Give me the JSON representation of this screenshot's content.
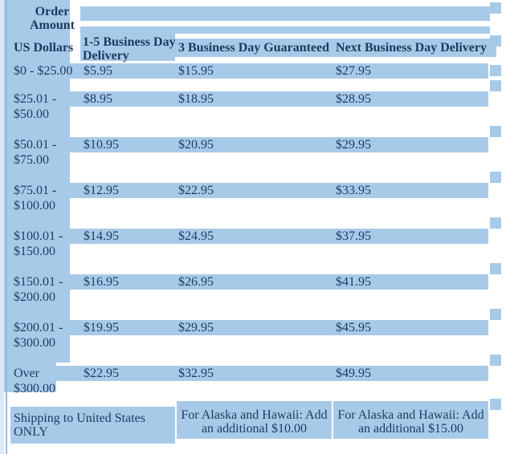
{
  "colors": {
    "cell_blue": "#a8cae9",
    "text_navy": "#1e3a5e",
    "page_strip_blue": "#dae8f7",
    "vertical_rule_blue": "#9cb9dd"
  },
  "table": {
    "title_lines": [
      "Order",
      "Amount"
    ],
    "headers": {
      "col1": "US Dollars",
      "col2_lines": [
        "1-5 Business Day",
        "Delivery"
      ],
      "col3": "3 Business Day Guaranteed",
      "col4": "Next Business Day Delivery"
    },
    "rows": [
      {
        "range_lines": [
          "$0 - $25.00"
        ],
        "standard": "$5.95",
        "three_day": "$15.95",
        "next_day": "$27.95"
      },
      {
        "range_lines": [
          "$25.01 -",
          "$50.00"
        ],
        "standard": "$8.95",
        "three_day": "$18.95",
        "next_day": "$28.95"
      },
      {
        "range_lines": [
          "$50.01 -",
          "$75.00"
        ],
        "standard": "$10.95",
        "three_day": "$20.95",
        "next_day": "$29.95"
      },
      {
        "range_lines": [
          "$75.01 -",
          "$100.00"
        ],
        "standard": "$12.95",
        "three_day": "$22.95",
        "next_day": "$33.95"
      },
      {
        "range_lines": [
          "$100.01 -",
          "$150.00"
        ],
        "standard": "$14.95",
        "three_day": "$24.95",
        "next_day": "$37.95"
      },
      {
        "range_lines": [
          "$150.01 -",
          "$200.00"
        ],
        "standard": "$16.95",
        "three_day": "$26.95",
        "next_day": "$41.95"
      },
      {
        "range_lines": [
          "$200.01 -",
          "$300.00"
        ],
        "standard": "$19.95",
        "three_day": "$29.95",
        "next_day": "$45.95"
      },
      {
        "range_lines": [
          "Over",
          "$300.00"
        ],
        "standard": "$22.95",
        "three_day": "$32.95",
        "next_day": "$49.95"
      }
    ],
    "footer": {
      "left_lines": [
        "Shipping to United States",
        "ONLY"
      ],
      "middle_lines": [
        "For Alaska and Hawaii: Add",
        "an additional $10.00"
      ],
      "right_lines": [
        "For Alaska and Hawaii: Add",
        "an additional $15.00"
      ]
    }
  }
}
